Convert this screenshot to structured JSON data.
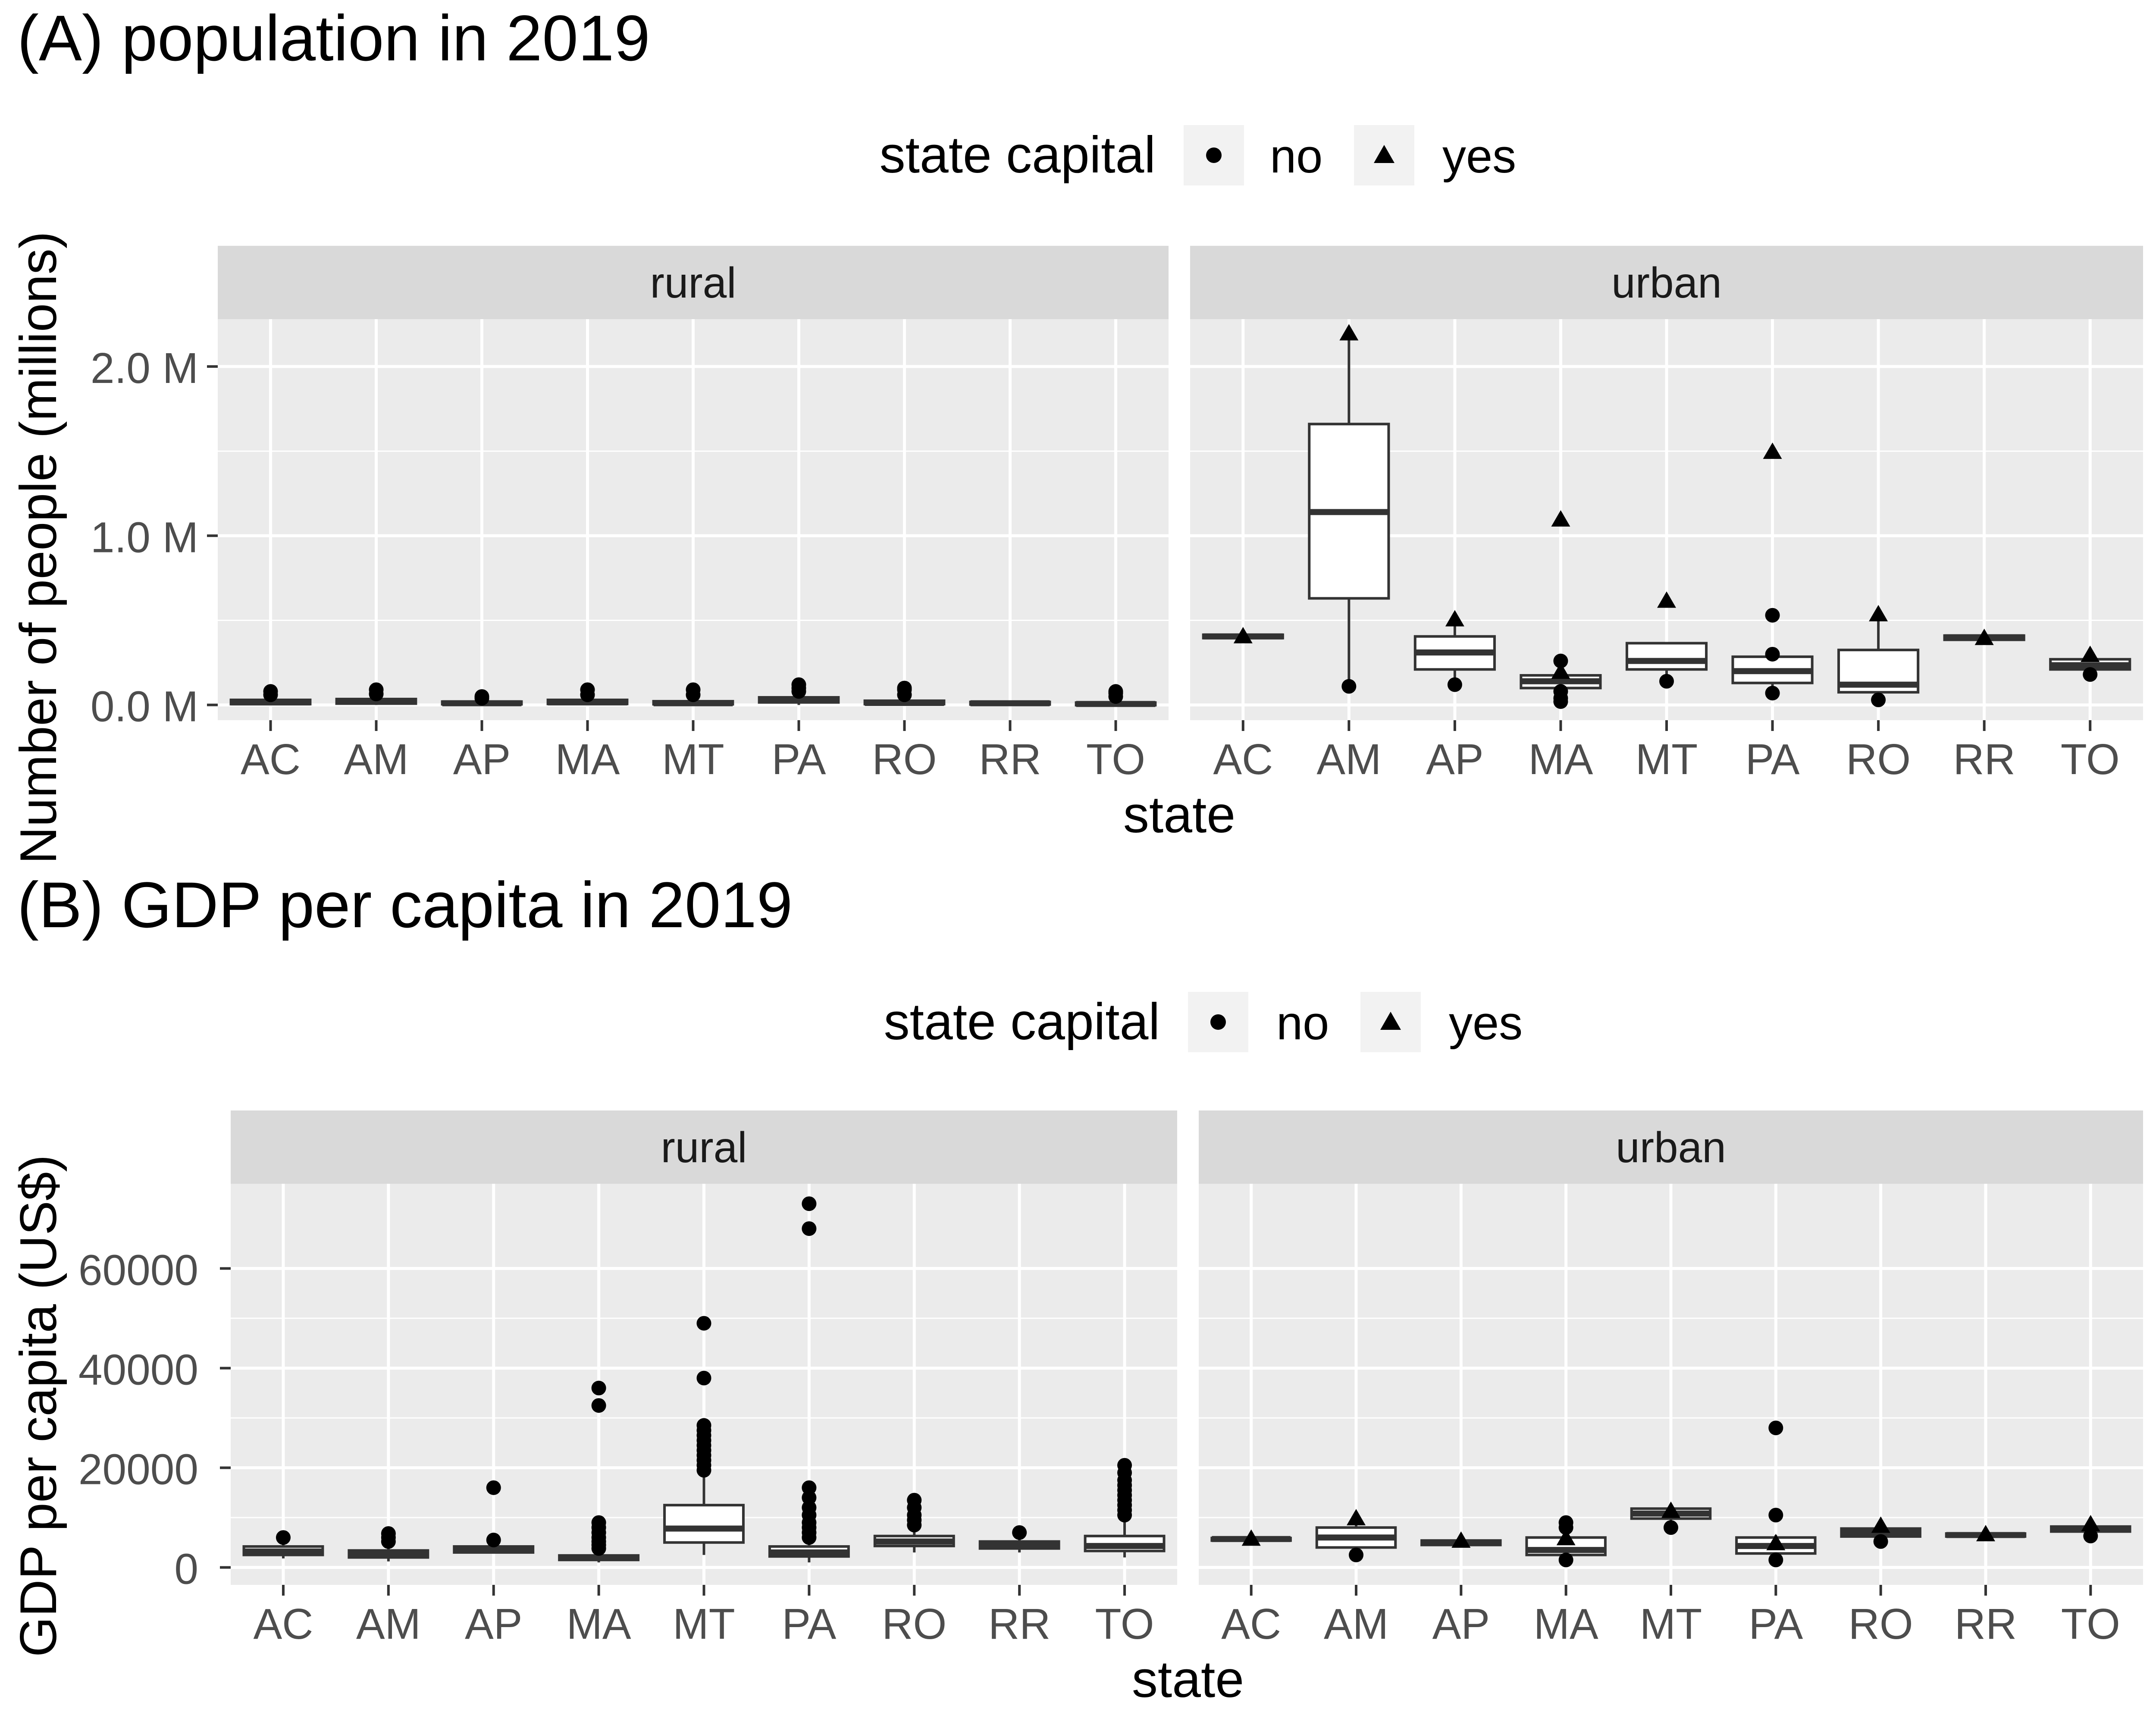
{
  "colors": {
    "panel_bg": "#ebebeb",
    "strip_bg": "#d9d9d9",
    "grid": "#ffffff",
    "box_fill": "#ffffff",
    "ink": "#333333",
    "point": "#000000"
  },
  "legend": {
    "title": "state capital",
    "no_label": "no",
    "yes_label": "yes"
  },
  "chart_data": [
    {
      "type": "box",
      "title": "(A) population in 2019",
      "xlabel": "state",
      "ylabel": "Number of people (millions)",
      "ylim": [
        -90000,
        2280000
      ],
      "yticks": [
        0,
        1000000,
        2000000
      ],
      "ytick_labels": [
        "0.0 M",
        "1.0 M",
        "2.0 M"
      ],
      "categories": [
        "AC",
        "AM",
        "AP",
        "MA",
        "MT",
        "PA",
        "RO",
        "RR",
        "TO"
      ],
      "facets": [
        {
          "label": "rural",
          "boxes": [
            {
              "q1": 5000,
              "median": 15000,
              "q3": 30000,
              "low": 0,
              "high": 50000,
              "outliers_no": [
                60000,
                80000
              ],
              "outliers_yes": []
            },
            {
              "q1": 8000,
              "median": 20000,
              "q3": 35000,
              "low": 0,
              "high": 55000,
              "outliers_no": [
                65000,
                90000
              ],
              "outliers_yes": []
            },
            {
              "q1": 4000,
              "median": 10000,
              "q3": 20000,
              "low": 0,
              "high": 30000,
              "outliers_no": [
                40000,
                50000
              ],
              "outliers_yes": []
            },
            {
              "q1": 6000,
              "median": 15000,
              "q3": 30000,
              "low": 0,
              "high": 50000,
              "outliers_no": [
                60000,
                90000
              ],
              "outliers_yes": []
            },
            {
              "q1": 4000,
              "median": 10000,
              "q3": 22000,
              "low": 0,
              "high": 40000,
              "outliers_no": [
                60000,
                90000
              ],
              "outliers_yes": []
            },
            {
              "q1": 15000,
              "median": 28000,
              "q3": 45000,
              "low": 0,
              "high": 70000,
              "outliers_no": [
                80000,
                100000,
                120000
              ],
              "outliers_yes": []
            },
            {
              "q1": 5000,
              "median": 12000,
              "q3": 25000,
              "low": 0,
              "high": 40000,
              "outliers_no": [
                60000,
                90000,
                100000
              ],
              "outliers_yes": []
            },
            {
              "q1": 5000,
              "median": 10000,
              "q3": 18000,
              "low": 0,
              "high": 25000,
              "outliers_no": [],
              "outliers_yes": []
            },
            {
              "q1": 2000,
              "median": 6000,
              "q3": 14000,
              "low": 0,
              "high": 30000,
              "outliers_no": [
                50000,
                70000,
                80000
              ],
              "outliers_yes": []
            }
          ]
        },
        {
          "label": "urban",
          "boxes": [
            {
              "q1": 395000,
              "median": 405000,
              "q3": 415000,
              "low": 395000,
              "high": 415000,
              "outliers_no": [],
              "outliers_yes": [
                410000
              ]
            },
            {
              "q1": 630000,
              "median": 1140000,
              "q3": 1660000,
              "low": 110000,
              "high": 2200000,
              "outliers_no": [
                110000
              ],
              "outliers_yes": [
                2200000
              ]
            },
            {
              "q1": 210000,
              "median": 310000,
              "q3": 405000,
              "low": 120000,
              "high": 500000,
              "outliers_no": [
                120000
              ],
              "outliers_yes": [
                510000
              ]
            },
            {
              "q1": 100000,
              "median": 140000,
              "q3": 175000,
              "low": 50000,
              "high": 220000,
              "outliers_no": [
                20000,
                40000,
                80000,
                260000
              ],
              "outliers_yes": [
                1100000,
                200000
              ]
            },
            {
              "q1": 210000,
              "median": 260000,
              "q3": 365000,
              "low": 140000,
              "high": 365000,
              "outliers_no": [
                140000
              ],
              "outliers_yes": [
                620000
              ]
            },
            {
              "q1": 130000,
              "median": 200000,
              "q3": 285000,
              "low": 70000,
              "high": 300000,
              "outliers_no": [
                70000,
                300000,
                530000
              ],
              "outliers_yes": [
                1500000
              ]
            },
            {
              "q1": 75000,
              "median": 120000,
              "q3": 325000,
              "low": 30000,
              "high": 500000,
              "outliers_no": [
                30000
              ],
              "outliers_yes": [
                540000
              ]
            },
            {
              "q1": 385000,
              "median": 400000,
              "q3": 410000,
              "low": 385000,
              "high": 410000,
              "outliers_no": [],
              "outliers_yes": [
                400000
              ]
            },
            {
              "q1": 210000,
              "median": 235000,
              "q3": 270000,
              "low": 200000,
              "high": 300000,
              "outliers_no": [
                180000
              ],
              "outliers_yes": [
                300000
              ]
            }
          ]
        }
      ]
    },
    {
      "type": "box",
      "title": "(B) GDP per capita in 2019",
      "xlabel": "state",
      "ylabel": "GDP per capita (US$)",
      "ylim": [
        -3500,
        77000
      ],
      "yticks": [
        0,
        20000,
        40000,
        60000
      ],
      "ytick_labels": [
        "0",
        "20000",
        "40000",
        "60000"
      ],
      "categories": [
        "AC",
        "AM",
        "AP",
        "MA",
        "MT",
        "PA",
        "RO",
        "RR",
        "TO"
      ],
      "facets": [
        {
          "label": "rural",
          "boxes": [
            {
              "q1": 2500,
              "median": 3200,
              "q3": 4200,
              "low": 1800,
              "high": 5500,
              "outliers_no": [
                6000
              ],
              "outliers_yes": []
            },
            {
              "q1": 2000,
              "median": 2600,
              "q3": 3400,
              "low": 1200,
              "high": 4500,
              "outliers_no": [
                5200,
                6000,
                6800
              ],
              "outliers_yes": []
            },
            {
              "q1": 3000,
              "median": 3600,
              "q3": 4200,
              "low": 2800,
              "high": 5000,
              "outliers_no": [
                5500,
                16000
              ],
              "outliers_yes": []
            },
            {
              "q1": 1500,
              "median": 1900,
              "q3": 2400,
              "low": 1000,
              "high": 3300,
              "outliers_no": [
                3800,
                4500,
                5200,
                6000,
                7000,
                8000,
                9000,
                32500,
                36000
              ],
              "outliers_yes": []
            },
            {
              "q1": 5000,
              "median": 7800,
              "q3": 12500,
              "low": 2500,
              "high": 19000,
              "outliers_no": [
                19500,
                20500,
                21500,
                22500,
                23500,
                24500,
                25500,
                26500,
                27500,
                28500,
                38000,
                49000
              ],
              "outliers_yes": []
            },
            {
              "q1": 2200,
              "median": 3000,
              "q3": 4200,
              "low": 1000,
              "high": 5500,
              "outliers_no": [
                6000,
                7000,
                8000,
                9000,
                10500,
                12000,
                14000,
                16000,
                68000,
                73000
              ],
              "outliers_yes": []
            },
            {
              "q1": 4300,
              "median": 5200,
              "q3": 6300,
              "low": 3000,
              "high": 7500,
              "outliers_no": [
                8500,
                9500,
                10500,
                12000,
                13500
              ],
              "outliers_yes": []
            },
            {
              "q1": 3800,
              "median": 4400,
              "q3": 5200,
              "low": 3000,
              "high": 6500,
              "outliers_no": [
                7000
              ],
              "outliers_yes": []
            },
            {
              "q1": 3300,
              "median": 4300,
              "q3": 6300,
              "low": 2000,
              "high": 9500,
              "outliers_no": [
                10500,
                11500,
                12500,
                13500,
                14500,
                15500,
                16500,
                17500,
                19000,
                20500
              ],
              "outliers_yes": []
            }
          ]
        },
        {
          "label": "urban",
          "boxes": [
            {
              "q1": 5500,
              "median": 5700,
              "q3": 5900,
              "low": 5500,
              "high": 5900,
              "outliers_no": [],
              "outliers_yes": [
                5900
              ]
            },
            {
              "q1": 4000,
              "median": 6000,
              "q3": 8000,
              "low": 2500,
              "high": 9500,
              "outliers_no": [
                2500
              ],
              "outliers_yes": [
                10000
              ]
            },
            {
              "q1": 4500,
              "median": 5000,
              "q3": 5400,
              "low": 4200,
              "high": 5700,
              "outliers_no": [],
              "outliers_yes": [
                5500
              ]
            },
            {
              "q1": 2500,
              "median": 3500,
              "q3": 6000,
              "low": 1500,
              "high": 7500,
              "outliers_no": [
                1500,
                8000,
                9000
              ],
              "outliers_yes": [
                6000
              ]
            },
            {
              "q1": 9800,
              "median": 10800,
              "q3": 11800,
              "low": 8000,
              "high": 12500,
              "outliers_no": [
                8000
              ],
              "outliers_yes": [
                11500
              ]
            },
            {
              "q1": 2800,
              "median": 4300,
              "q3": 6000,
              "low": 1500,
              "high": 6500,
              "outliers_no": [
                1500,
                10500,
                28000
              ],
              "outliers_yes": [
                5000
              ]
            },
            {
              "q1": 6200,
              "median": 7000,
              "q3": 7800,
              "low": 5200,
              "high": 8500,
              "outliers_no": [
                5200
              ],
              "outliers_yes": [
                8500
              ]
            },
            {
              "q1": 6200,
              "median": 6500,
              "q3": 6800,
              "low": 6200,
              "high": 6800,
              "outliers_no": [],
              "outliers_yes": [
                6800
              ]
            },
            {
              "q1": 7200,
              "median": 7700,
              "q3": 8200,
              "low": 6300,
              "high": 8500,
              "outliers_no": [
                6300
              ],
              "outliers_yes": [
                8800
              ]
            }
          ]
        }
      ]
    }
  ]
}
